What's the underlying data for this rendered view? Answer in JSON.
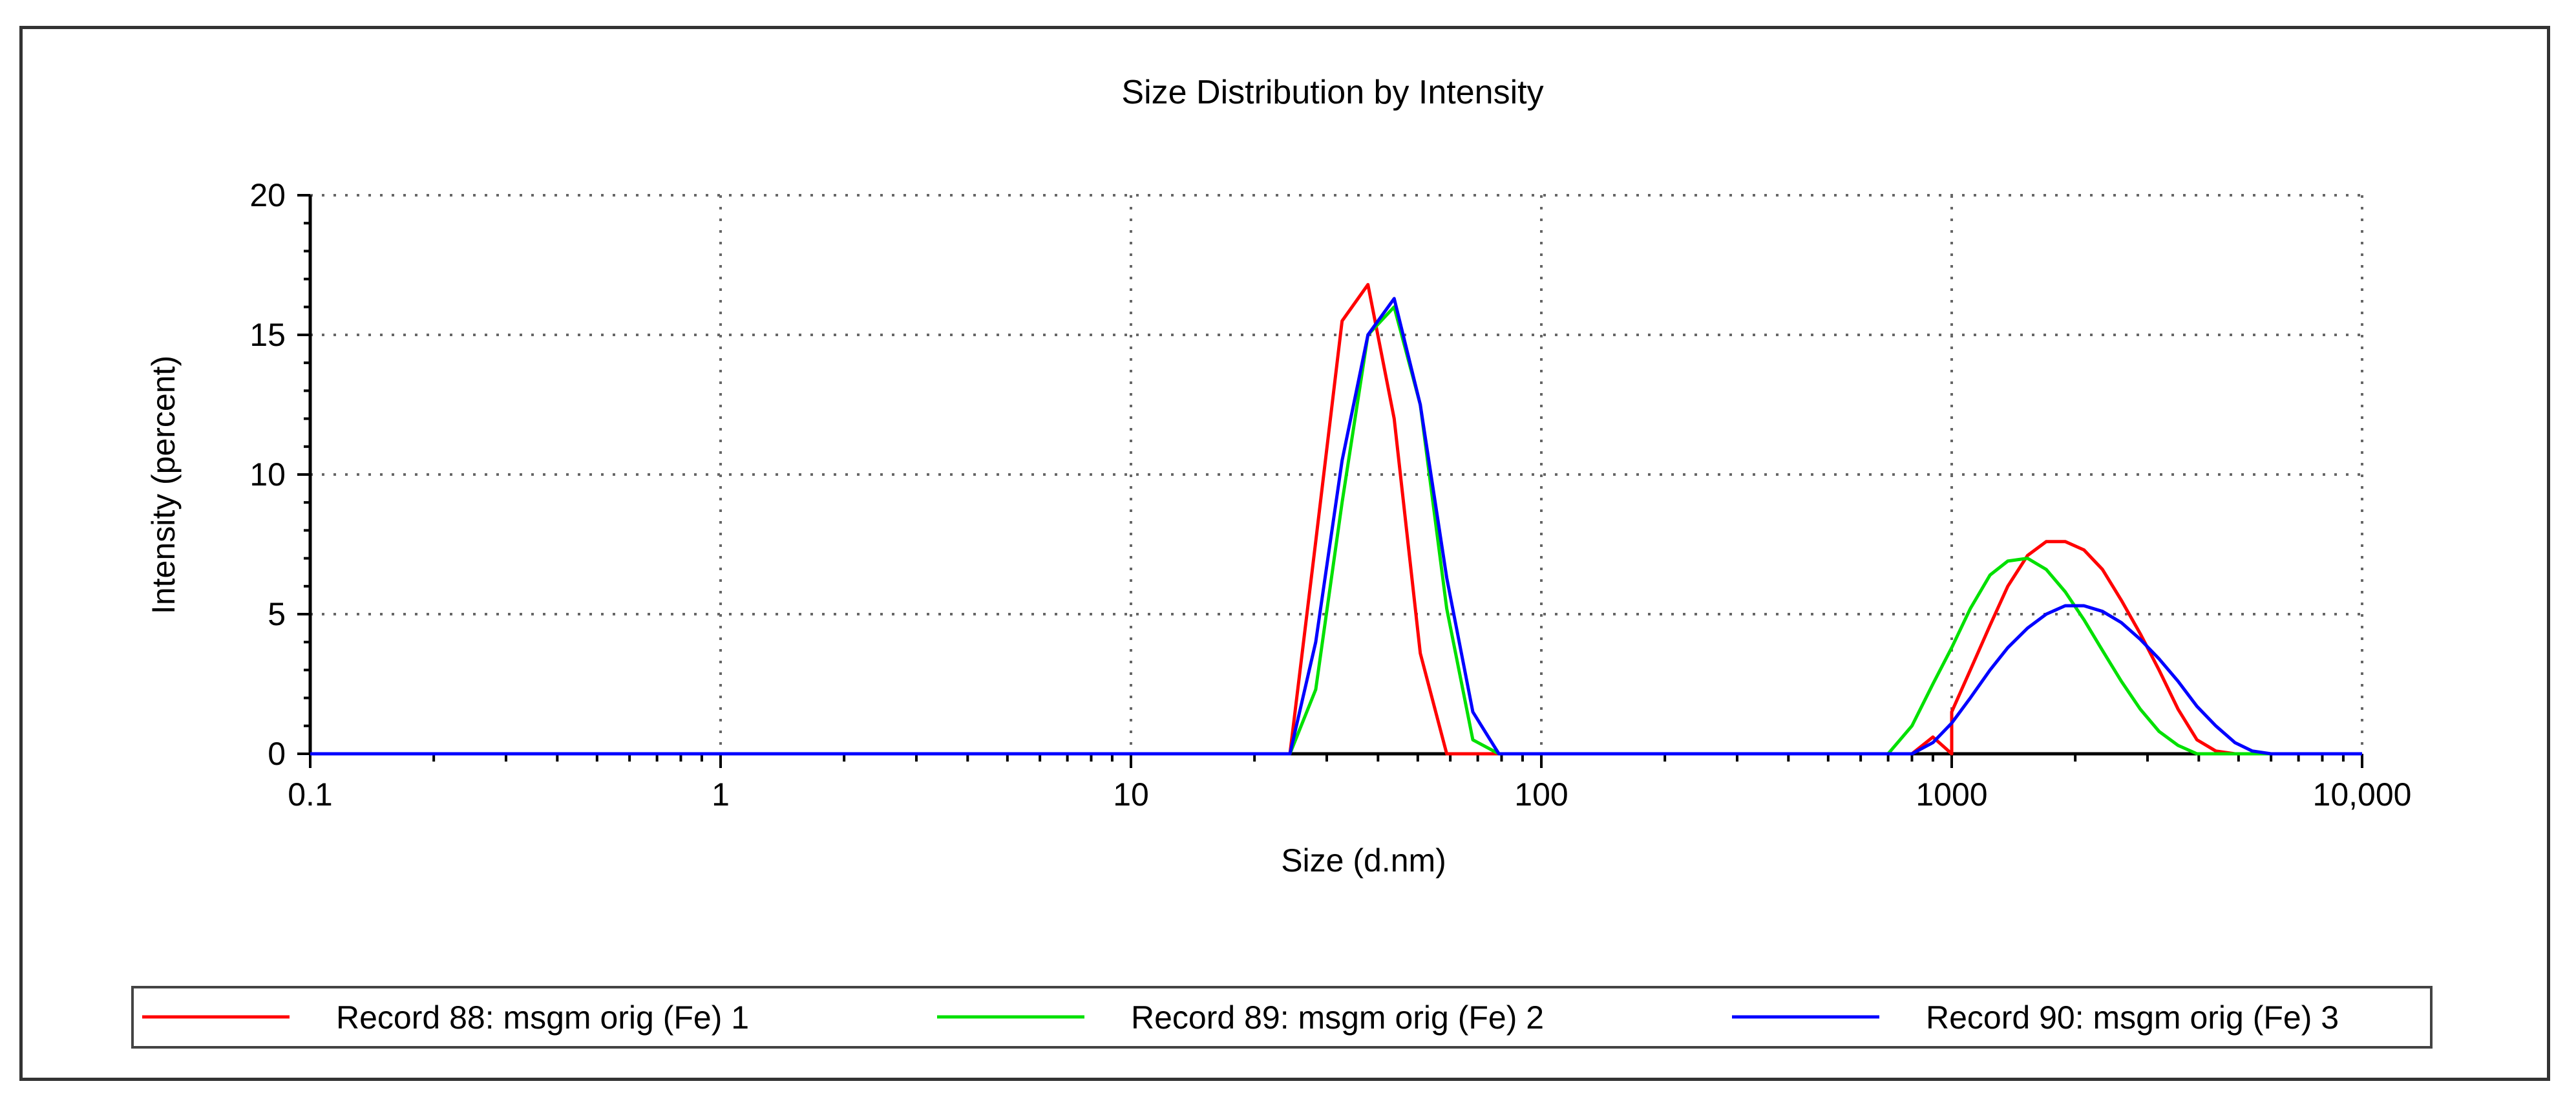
{
  "chart_data": {
    "type": "line",
    "title": "Size Distribution by Intensity",
    "xlabel": "Size (d.nm)",
    "ylabel": "Intensity (percent)",
    "xscale": "log",
    "xlim": [
      0.1,
      10000
    ],
    "ylim": [
      0,
      20
    ],
    "grid": true,
    "legend_position": "bottom",
    "x_ticks": [
      0.1,
      1,
      10,
      100,
      1000,
      10000
    ],
    "x_tick_labels": [
      "0.1",
      "1",
      "10",
      "100",
      "1000",
      "10,000"
    ],
    "y_ticks": [
      0,
      5,
      10,
      15,
      20
    ],
    "y_tick_labels": [
      "0",
      "5",
      "10",
      "15",
      "20"
    ],
    "series": [
      {
        "name": "Record 88: msgm orig (Fe) 1",
        "color": "#ff0000",
        "points": [
          [
            0.1,
            0
          ],
          [
            24.4,
            0
          ],
          [
            28.2,
            7.6
          ],
          [
            32.7,
            15.5
          ],
          [
            37.8,
            16.8
          ],
          [
            43.8,
            12.0
          ],
          [
            50.7,
            3.6
          ],
          [
            58.8,
            0
          ],
          [
            1000,
            0
          ],
          [
            700,
            0
          ],
          [
            800,
            0
          ],
          [
            900,
            0.6
          ],
          [
            1000,
            1.5
          ],
          [
            1110,
            3.0
          ],
          [
            1240,
            4.6
          ],
          [
            1370,
            6.0
          ],
          [
            1530,
            7.1
          ],
          [
            1700,
            7.6
          ],
          [
            1890,
            7.6
          ],
          [
            2100,
            7.3
          ],
          [
            2330,
            6.6
          ],
          [
            2590,
            5.5
          ],
          [
            2880,
            4.3
          ],
          [
            3200,
            3.0
          ],
          [
            3560,
            1.6
          ],
          [
            3960,
            0.5
          ],
          [
            4400,
            0.1
          ],
          [
            4900,
            0
          ],
          [
            10000,
            0
          ]
        ]
      },
      {
        "name": "Record 89: msgm orig (Fe) 2",
        "color": "#00e000",
        "points": [
          [
            0.1,
            0
          ],
          [
            24.4,
            0
          ],
          [
            28.2,
            2.3
          ],
          [
            32.7,
            9.0
          ],
          [
            37.8,
            15.0
          ],
          [
            43.8,
            16.0
          ],
          [
            50.7,
            12.5
          ],
          [
            58.8,
            5.2
          ],
          [
            68.1,
            0.5
          ],
          [
            78.8,
            0
          ],
          [
            650,
            0
          ],
          [
            700,
            0
          ],
          [
            800,
            1.0
          ],
          [
            900,
            2.5
          ],
          [
            1000,
            3.8
          ],
          [
            1110,
            5.2
          ],
          [
            1240,
            6.4
          ],
          [
            1370,
            6.9
          ],
          [
            1530,
            7.0
          ],
          [
            1700,
            6.6
          ],
          [
            1890,
            5.8
          ],
          [
            2100,
            4.8
          ],
          [
            2330,
            3.7
          ],
          [
            2590,
            2.6
          ],
          [
            2880,
            1.6
          ],
          [
            3200,
            0.8
          ],
          [
            3560,
            0.3
          ],
          [
            3960,
            0
          ],
          [
            10000,
            0
          ]
        ]
      },
      {
        "name": "Record 90: msgm orig (Fe) 3",
        "color": "#0000ff",
        "points": [
          [
            0.1,
            0
          ],
          [
            24.4,
            0
          ],
          [
            28.2,
            4.0
          ],
          [
            32.7,
            10.5
          ],
          [
            37.8,
            15.0
          ],
          [
            43.8,
            16.3
          ],
          [
            50.7,
            12.5
          ],
          [
            58.8,
            6.3
          ],
          [
            68.1,
            1.5
          ],
          [
            78.8,
            0
          ],
          [
            800,
            0
          ],
          [
            900,
            0.4
          ],
          [
            1000,
            1.1
          ],
          [
            1110,
            2.0
          ],
          [
            1240,
            3.0
          ],
          [
            1370,
            3.8
          ],
          [
            1530,
            4.5
          ],
          [
            1700,
            5.0
          ],
          [
            1890,
            5.3
          ],
          [
            2100,
            5.3
          ],
          [
            2330,
            5.1
          ],
          [
            2590,
            4.7
          ],
          [
            2880,
            4.1
          ],
          [
            3200,
            3.4
          ],
          [
            3560,
            2.6
          ],
          [
            3960,
            1.7
          ],
          [
            4400,
            1.0
          ],
          [
            4900,
            0.4
          ],
          [
            5400,
            0.1
          ],
          [
            6000,
            0
          ],
          [
            10000,
            0
          ]
        ]
      }
    ]
  }
}
